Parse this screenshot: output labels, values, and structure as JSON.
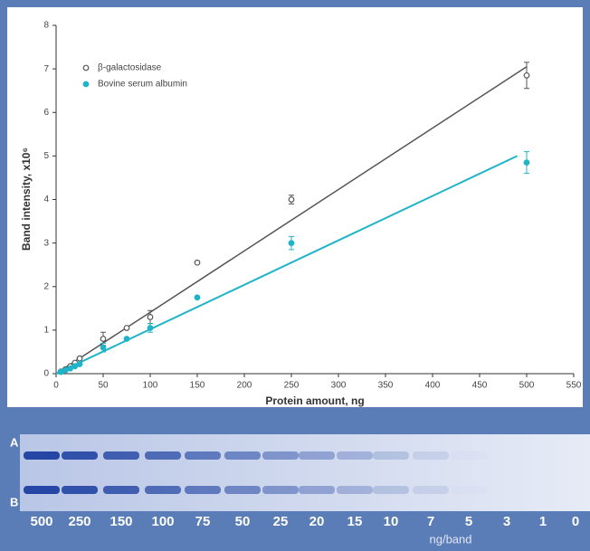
{
  "chart_data": {
    "type": "scatter",
    "x_label": "Protein amount, ng",
    "y_label": "Band intensity, x10⁶",
    "xlim": [
      0,
      550
    ],
    "xticks": [
      0,
      50,
      100,
      150,
      200,
      250,
      300,
      350,
      400,
      450,
      500,
      550
    ],
    "ylim": [
      0,
      8
    ],
    "yticks": [
      0,
      1,
      2,
      3,
      4,
      5,
      6,
      7,
      8
    ],
    "series": [
      {
        "name": "β-galactosidase",
        "color": "#555555",
        "marker": "open-circle",
        "x": [
          5,
          10,
          15,
          20,
          25,
          50,
          75,
          100,
          150,
          250,
          500
        ],
        "values": [
          0.05,
          0.1,
          0.17,
          0.25,
          0.35,
          0.8,
          1.05,
          1.3,
          2.55,
          4.0,
          6.85
        ],
        "errors": [
          null,
          null,
          null,
          null,
          null,
          0.15,
          null,
          0.15,
          null,
          0.1,
          0.3
        ],
        "fit_x": [
          0,
          500
        ],
        "fit_values": [
          0,
          7.05
        ]
      },
      {
        "name": "Bovine serum albumin",
        "color": "#1fb4c8",
        "marker": "filled",
        "x": [
          5,
          10,
          15,
          20,
          25,
          50,
          75,
          100,
          150,
          250,
          500
        ],
        "values": [
          0.04,
          0.08,
          0.12,
          0.17,
          0.22,
          0.6,
          0.8,
          1.05,
          1.75,
          3.0,
          4.85
        ],
        "errors": [
          null,
          null,
          null,
          null,
          null,
          0.1,
          null,
          0.1,
          null,
          0.15,
          0.25
        ],
        "fit_x": [
          0,
          490
        ],
        "fit_values": [
          0,
          5.0
        ]
      }
    ]
  },
  "gel": {
    "rows": [
      "A",
      "B"
    ],
    "lanes": [
      "500",
      "250",
      "150",
      "100",
      "75",
      "50",
      "25",
      "20",
      "15",
      "10",
      "7",
      "5",
      "3",
      "1",
      "0"
    ],
    "unit": "ng/band"
  }
}
